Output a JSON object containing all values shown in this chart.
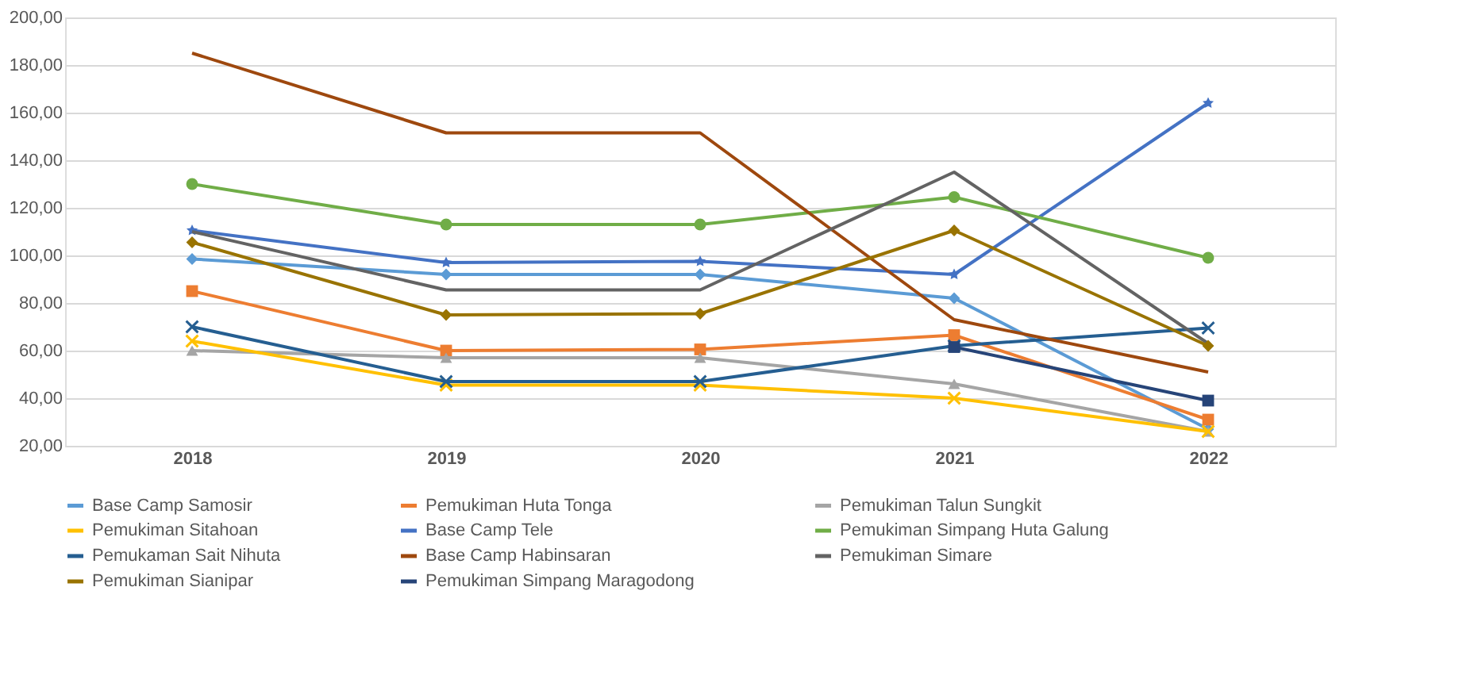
{
  "chart_data": {
    "type": "line",
    "categories": [
      "2018",
      "2019",
      "2020",
      "2021",
      "2022"
    ],
    "ylim": [
      20,
      200
    ],
    "yticks": [
      {
        "value": 20,
        "label": "20,00"
      },
      {
        "value": 40,
        "label": "40,00"
      },
      {
        "value": 60,
        "label": "60,00"
      },
      {
        "value": 80,
        "label": "80,00"
      },
      {
        "value": 100,
        "label": "100,00"
      },
      {
        "value": 120,
        "label": "120,00"
      },
      {
        "value": 140,
        "label": "140,00"
      },
      {
        "value": 160,
        "label": "160,00"
      },
      {
        "value": 180,
        "label": "180,00"
      },
      {
        "value": 200,
        "label": "200,00"
      }
    ],
    "grid": "y",
    "legend": "bottom",
    "line_style": "solid",
    "series": [
      {
        "name": "Base Camp Samosir",
        "color": "#5b9bd5",
        "marker": "diamond",
        "values": [
          98.5,
          92,
          92,
          82,
          27
        ]
      },
      {
        "name": "Pemukiman Huta Tonga",
        "color": "#ed7d31",
        "marker": "square",
        "values": [
          85,
          60,
          60.5,
          66.5,
          31
        ]
      },
      {
        "name": "Pemukiman Talun Sungkit",
        "color": "#a5a5a5",
        "marker": "triangle",
        "values": [
          60,
          57,
          57,
          46,
          26
        ]
      },
      {
        "name": "Pemukiman Sitahoan",
        "color": "#ffc000",
        "marker": "cross",
        "values": [
          64,
          45.5,
          45.5,
          40,
          26
        ]
      },
      {
        "name": "Base Camp Tele",
        "color": "#4472c4",
        "marker": "star",
        "values": [
          110.5,
          97,
          97.5,
          92,
          164
        ]
      },
      {
        "name": "Pemukiman Simpang Huta Galung",
        "color": "#70ad47",
        "marker": "circle",
        "values": [
          130,
          113,
          113,
          124.5,
          99
        ]
      },
      {
        "name": "Pemukaman Sait Nihuta",
        "color": "#255e91",
        "marker": "cross",
        "values": [
          70,
          47,
          47,
          62,
          69.5
        ]
      },
      {
        "name": "Base Camp Habinsaran",
        "color": "#9e480e",
        "marker": "none",
        "values": [
          185,
          151.5,
          151.5,
          73,
          51
        ]
      },
      {
        "name": "Pemukiman Simare",
        "color": "#636363",
        "marker": "none",
        "values": [
          110,
          85.5,
          85.5,
          135,
          63
        ]
      },
      {
        "name": "Pemukiman Sianipar",
        "color": "#997300",
        "marker": "diamond",
        "values": [
          105.5,
          75,
          75.5,
          110.5,
          62
        ]
      },
      {
        "name": "Pemukiman Simpang Maragodong",
        "color": "#264478",
        "marker": "square",
        "values": [
          null,
          null,
          null,
          61.5,
          39
        ]
      }
    ]
  }
}
